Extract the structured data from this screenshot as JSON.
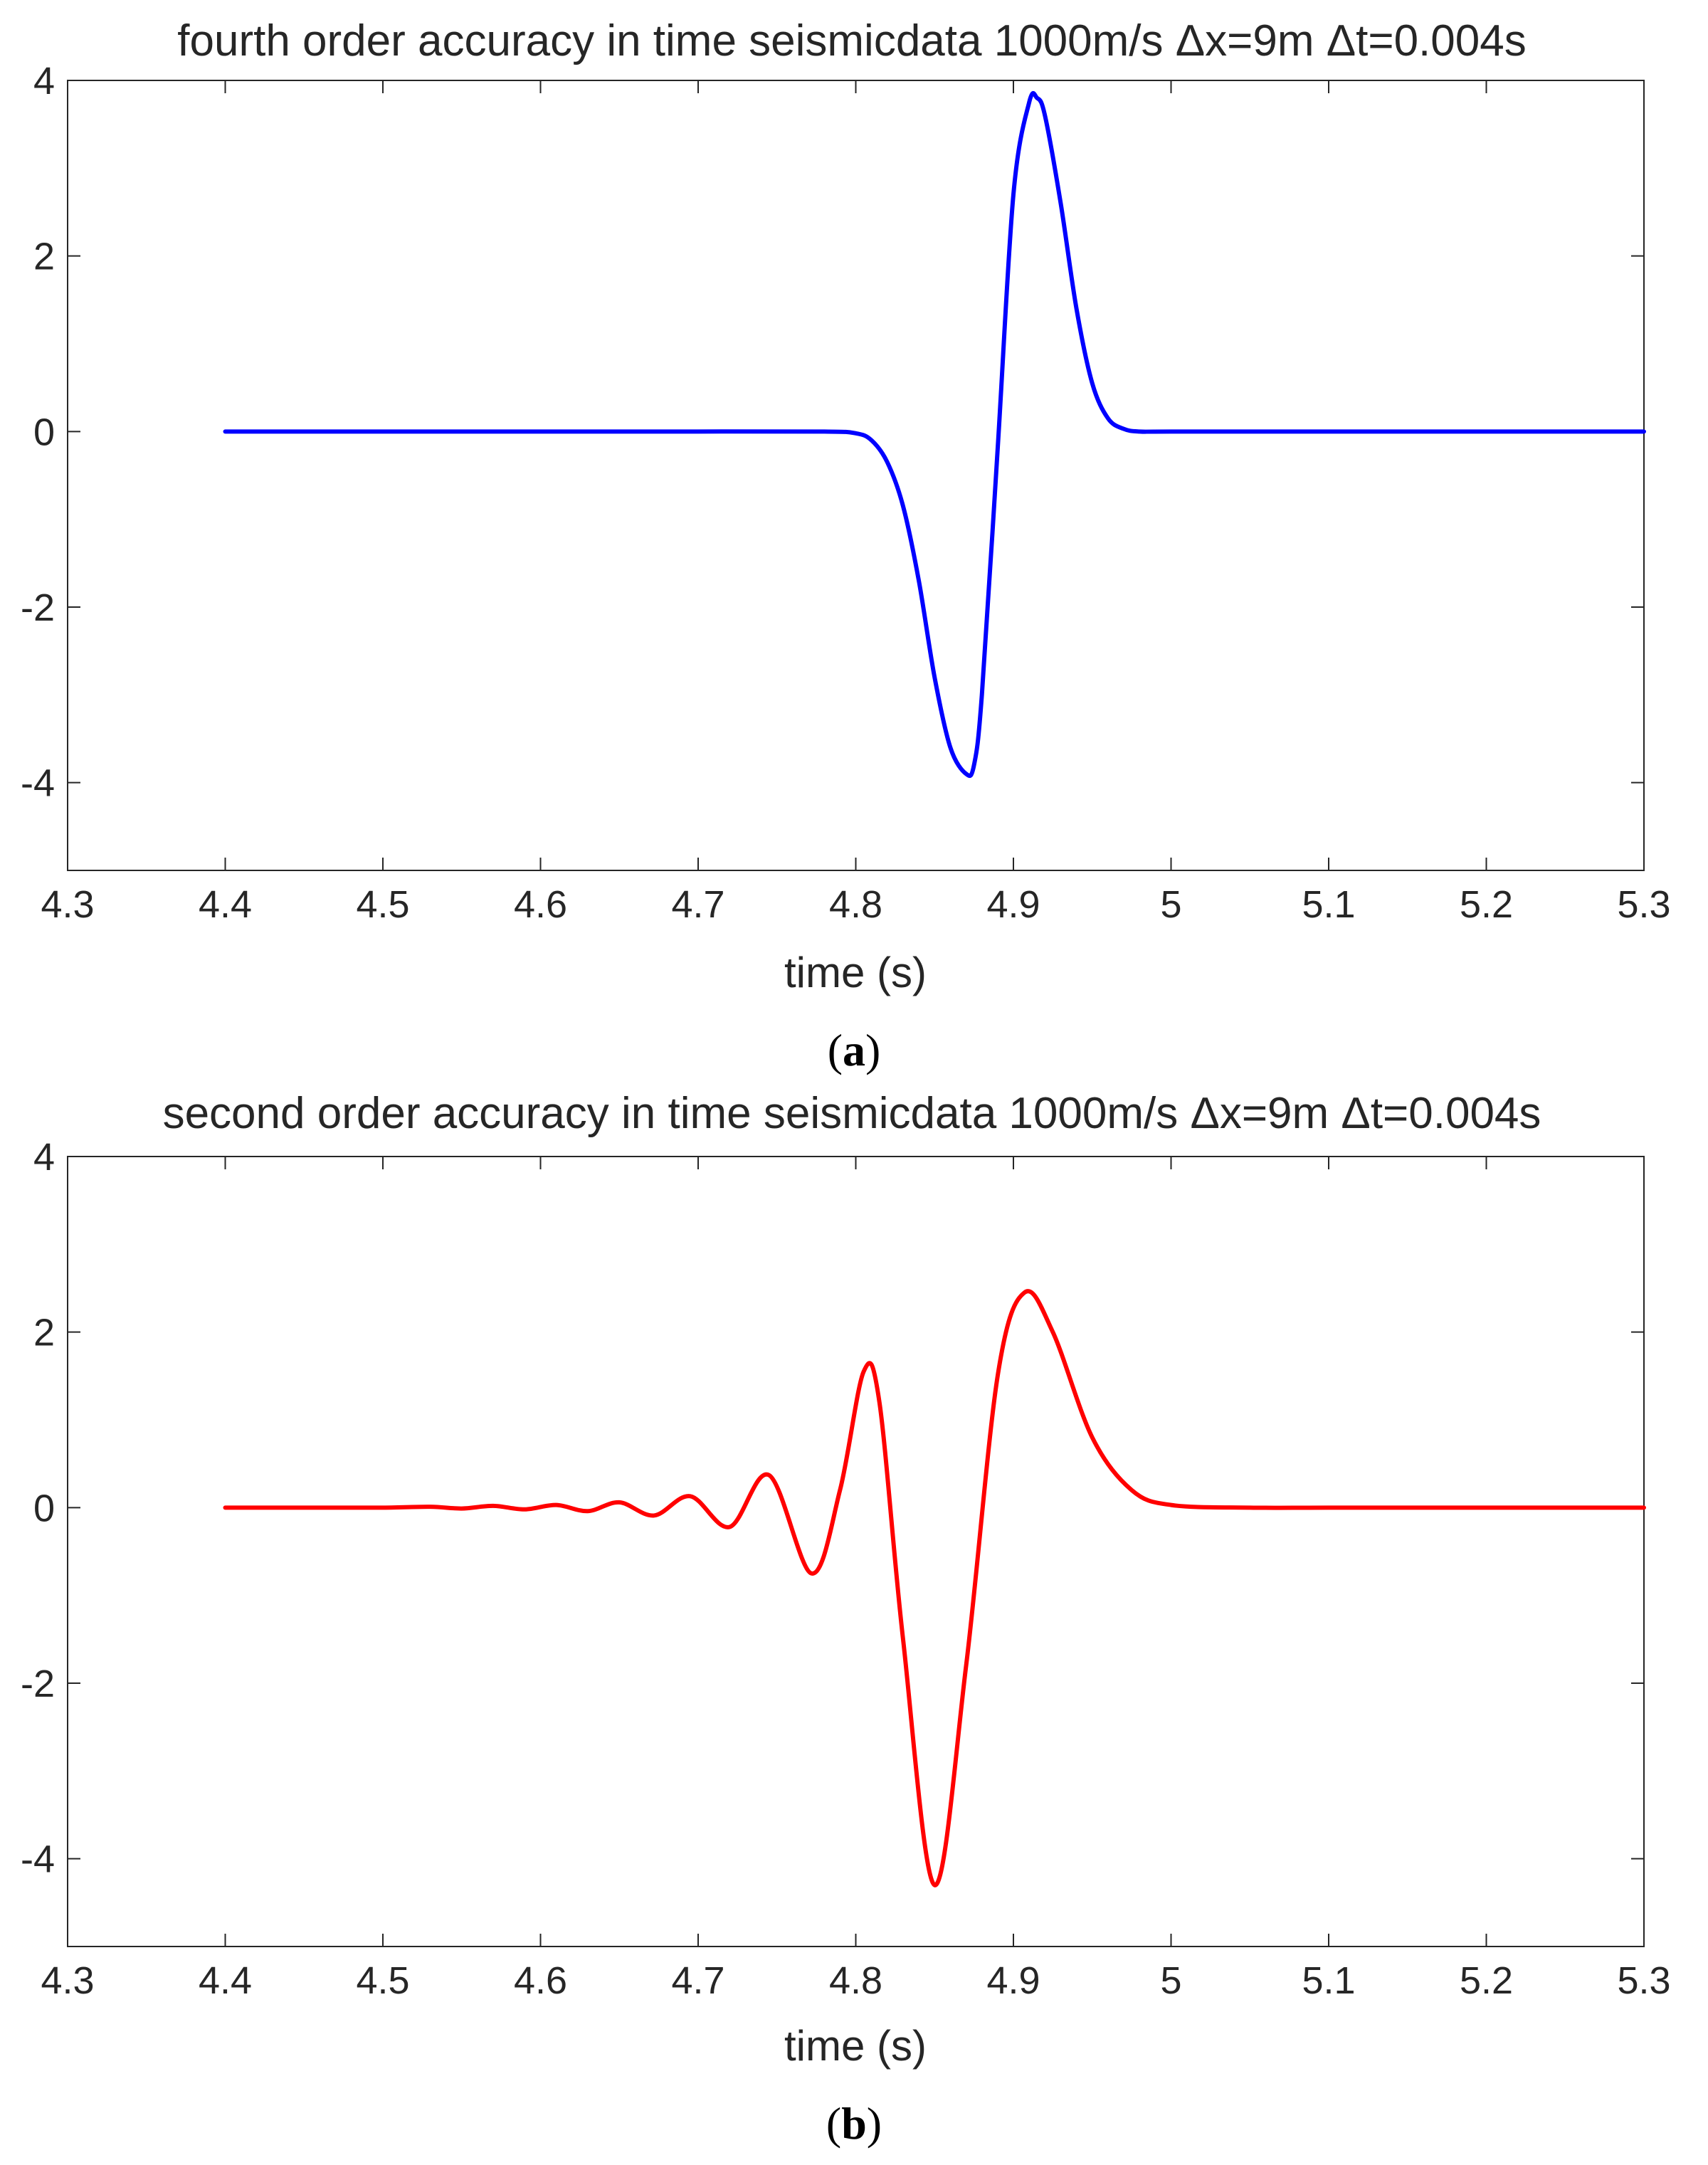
{
  "chart_data": [
    {
      "type": "line",
      "panel": "a",
      "caption": "a",
      "title": "fourth order accuracy in time seismicdata 1000m/s Δx=9m Δt=0.004s",
      "xlabel": "time (s)",
      "ylabel": "",
      "xlim": [
        4.3,
        5.3
      ],
      "ylim": [
        -5,
        4
      ],
      "xticks": [
        4.3,
        4.4,
        4.5,
        4.6,
        4.7,
        4.8,
        4.9,
        5,
        5.1,
        5.2,
        5.3
      ],
      "xtick_labels": [
        "4.3",
        "4.4",
        "4.5",
        "4.6",
        "4.7",
        "4.8",
        "4.9",
        "5",
        "5.1",
        "5.2",
        "5.3"
      ],
      "yticks": [
        4,
        2,
        0,
        -2,
        -4
      ],
      "ytick_labels": [
        "4",
        "2",
        "0",
        "-2",
        "-4"
      ],
      "grid": false,
      "series": [
        {
          "color": "#0000ff",
          "x": [
            4.4,
            4.5,
            4.6,
            4.7,
            4.78,
            4.8,
            4.81,
            4.82,
            4.83,
            4.84,
            4.85,
            4.86,
            4.87,
            4.875,
            4.88,
            4.89,
            4.9,
            4.91,
            4.915,
            4.92,
            4.93,
            4.94,
            4.95,
            4.96,
            4.97,
            4.98,
            5.0,
            5.1,
            5.2,
            5.3
          ],
          "y": [
            0,
            0,
            0,
            0,
            0,
            -0.02,
            -0.1,
            -0.35,
            -0.85,
            -1.7,
            -2.8,
            -3.6,
            -3.9,
            -3.8,
            -3.0,
            -0.2,
            2.7,
            3.75,
            3.8,
            3.6,
            2.6,
            1.4,
            0.55,
            0.15,
            0.03,
            0.0,
            0,
            0,
            0,
            0
          ]
        }
      ]
    },
    {
      "type": "line",
      "panel": "b",
      "caption": "b",
      "title": "second order accuracy in time seismicdata 1000m/s Δx=9m Δt=0.004s",
      "xlabel": "time (s)",
      "ylabel": "",
      "xlim": [
        4.3,
        5.3
      ],
      "ylim": [
        -5,
        4
      ],
      "xticks": [
        4.3,
        4.4,
        4.5,
        4.6,
        4.7,
        4.8,
        4.9,
        5,
        5.1,
        5.2,
        5.3
      ],
      "xtick_labels": [
        "4.3",
        "4.4",
        "4.5",
        "4.6",
        "4.7",
        "4.8",
        "4.9",
        "5",
        "5.1",
        "5.2",
        "5.3"
      ],
      "yticks": [
        4,
        2,
        0,
        -2,
        -4
      ],
      "ytick_labels": [
        "4",
        "2",
        "0",
        "-2",
        "-4"
      ],
      "grid": false,
      "series": [
        {
          "color": "#ff0000",
          "x": [
            4.4,
            4.45,
            4.5,
            4.53,
            4.55,
            4.57,
            4.59,
            4.61,
            4.63,
            4.65,
            4.672,
            4.695,
            4.72,
            4.745,
            4.772,
            4.79,
            4.805,
            4.815,
            4.83,
            4.85,
            4.87,
            4.89,
            4.907,
            4.925,
            4.95,
            4.975,
            5.0,
            5.05,
            5.1,
            5.2,
            5.3
          ],
          "y": [
            0,
            0,
            0,
            0.01,
            -0.01,
            0.02,
            -0.02,
            0.03,
            -0.04,
            0.06,
            -0.09,
            0.13,
            -0.22,
            0.37,
            -0.75,
            0.2,
            1.55,
            1.2,
            -1.5,
            -4.3,
            -1.8,
            1.5,
            2.45,
            2.0,
            0.8,
            0.2,
            0.03,
            0,
            0,
            0,
            0
          ]
        }
      ]
    }
  ]
}
